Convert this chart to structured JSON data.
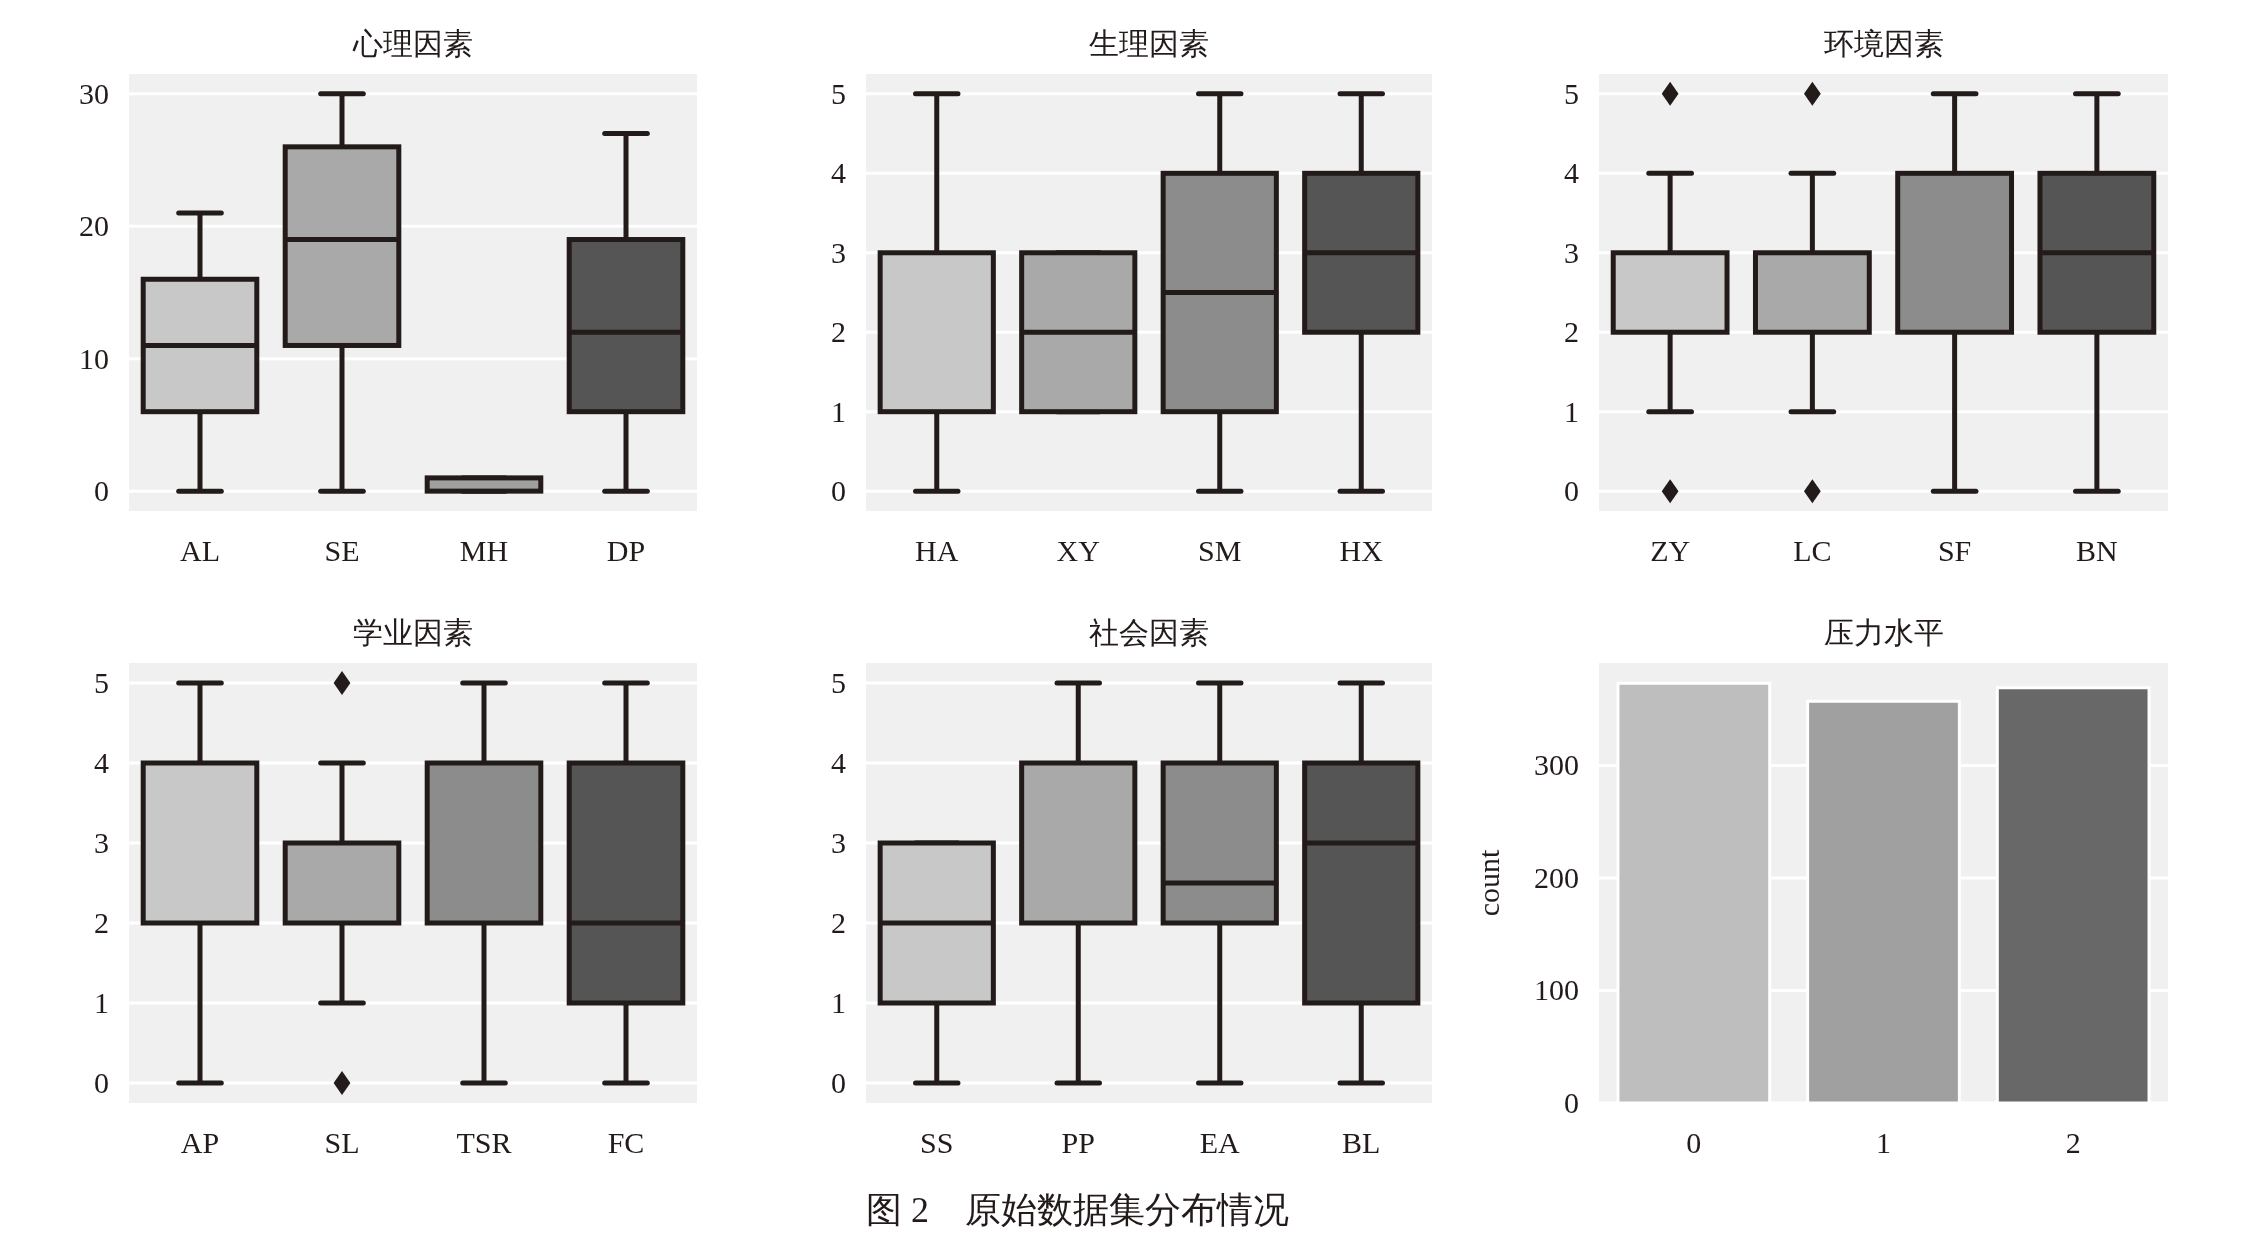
{
  "chart_data": [
    {
      "type": "box",
      "title": "心理因素",
      "categories": [
        "AL",
        "SE",
        "MH",
        "DP"
      ],
      "colors": [
        "#c8c8c8",
        "#a9a9a9",
        "#a0a0a0",
        "#555555"
      ],
      "ylim": [
        -1.5,
        31.5
      ],
      "yticks": [
        0,
        10,
        20,
        30
      ],
      "grid": "y",
      "boxes": [
        {
          "low": 0,
          "q1": 6,
          "median": 11,
          "q3": 16,
          "high": 21
        },
        {
          "low": 0,
          "q1": 11,
          "median": 19,
          "q3": 26,
          "high": 30
        },
        {
          "low": 0,
          "q1": 0,
          "median": 0,
          "q3": 1,
          "high": 1
        },
        {
          "low": 0,
          "q1": 6,
          "median": 12,
          "q3": 19,
          "high": 27
        }
      ]
    },
    {
      "type": "box",
      "title": "生理因素",
      "categories": [
        "HA",
        "XY",
        "SM",
        "HX"
      ],
      "colors": [
        "#c8c8c8",
        "#a9a9a9",
        "#8c8c8c",
        "#555555"
      ],
      "ylim": [
        -0.25,
        5.25
      ],
      "yticks": [
        0,
        1,
        2,
        3,
        4,
        5
      ],
      "grid": "y",
      "boxes": [
        {
          "low": 0,
          "q1": 1,
          "median": 1,
          "q3": 3,
          "high": 5
        },
        {
          "low": 1,
          "q1": 1,
          "median": 2,
          "q3": 3,
          "high": 3
        },
        {
          "low": 0,
          "q1": 1,
          "median": 2.5,
          "q3": 4,
          "high": 5
        },
        {
          "low": 0,
          "q1": 2,
          "median": 3,
          "q3": 4,
          "high": 5
        }
      ]
    },
    {
      "type": "box",
      "title": "环境因素",
      "categories": [
        "ZY",
        "LC",
        "SF",
        "BN"
      ],
      "colors": [
        "#c8c8c8",
        "#a9a9a9",
        "#8c8c8c",
        "#555555"
      ],
      "ylim": [
        -0.25,
        5.25
      ],
      "yticks": [
        0,
        1,
        2,
        3,
        4,
        5
      ],
      "grid": "y",
      "boxes": [
        {
          "low": 1,
          "q1": 2,
          "median": 2,
          "q3": 3,
          "high": 4,
          "outliers": [
            5,
            0
          ]
        },
        {
          "low": 1,
          "q1": 2,
          "median": 2,
          "q3": 3,
          "high": 4,
          "outliers": [
            5,
            0
          ]
        },
        {
          "low": 0,
          "q1": 2,
          "median": 2,
          "q3": 4,
          "high": 5
        },
        {
          "low": 0,
          "q1": 2,
          "median": 3,
          "q3": 4,
          "high": 5
        }
      ]
    },
    {
      "type": "box",
      "title": "学业因素",
      "categories": [
        "AP",
        "SL",
        "TSR",
        "FC"
      ],
      "colors": [
        "#c8c8c8",
        "#a9a9a9",
        "#8c8c8c",
        "#555555"
      ],
      "ylim": [
        -0.25,
        5.25
      ],
      "yticks": [
        0,
        1,
        2,
        3,
        4,
        5
      ],
      "grid": "y",
      "boxes": [
        {
          "low": 0,
          "q1": 2,
          "median": 2,
          "q3": 4,
          "high": 5
        },
        {
          "low": 1,
          "q1": 2,
          "median": 2,
          "q3": 3,
          "high": 4,
          "outliers": [
            5,
            0
          ]
        },
        {
          "low": 0,
          "q1": 2,
          "median": 2,
          "q3": 4,
          "high": 5
        },
        {
          "low": 0,
          "q1": 1,
          "median": 2,
          "q3": 4,
          "high": 5
        }
      ]
    },
    {
      "type": "box",
      "title": "社会因素",
      "categories": [
        "SS",
        "PP",
        "EA",
        "BL"
      ],
      "colors": [
        "#c8c8c8",
        "#a9a9a9",
        "#8c8c8c",
        "#555555"
      ],
      "ylim": [
        -0.25,
        5.25
      ],
      "yticks": [
        0,
        1,
        2,
        3,
        4,
        5
      ],
      "grid": "y",
      "boxes": [
        {
          "low": 0,
          "q1": 1,
          "median": 2,
          "q3": 3,
          "high": 3
        },
        {
          "low": 0,
          "q1": 2,
          "median": 2,
          "q3": 4,
          "high": 5
        },
        {
          "low": 0,
          "q1": 2,
          "median": 2.5,
          "q3": 4,
          "high": 5
        },
        {
          "low": 0,
          "q1": 1,
          "median": 3,
          "q3": 4,
          "high": 5
        }
      ]
    },
    {
      "type": "bar",
      "title": "压力水平",
      "categories": [
        "0",
        "1",
        "2"
      ],
      "values": [
        373,
        357,
        369
      ],
      "colors": [
        "#bebebe",
        "#a0a0a0",
        "#686868"
      ],
      "ylabel": "count",
      "ylim": [
        0,
        391
      ],
      "yticks": [
        0,
        100,
        200,
        300
      ],
      "grid": "y",
      "annotations": [
        "图 2　原始数据集分布情况"
      ]
    }
  ]
}
